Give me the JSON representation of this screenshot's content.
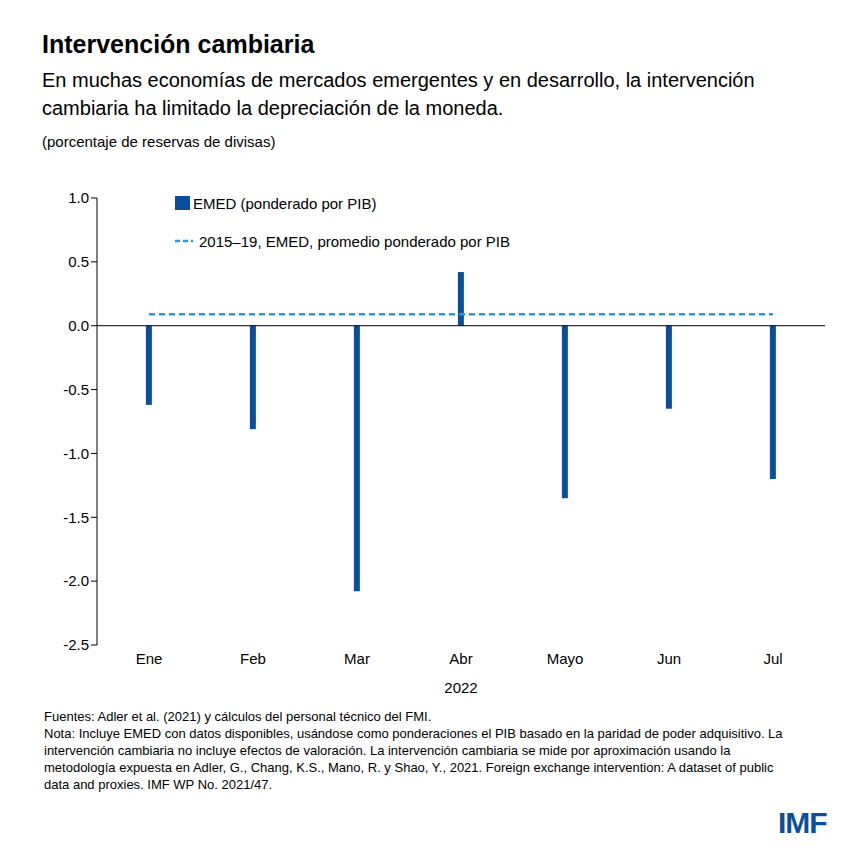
{
  "chart_data": {
    "type": "bar",
    "title": "Intervención cambiaria",
    "subtitle": "En muchas economías de mercados emergentes y en desarrollo, la intervención cambiaria ha limitado la depreciación de la moneda.",
    "ylabel": "(porcentaje de reservas de divisas)",
    "xlabel": "2022",
    "categories": [
      "Ene",
      "Feb",
      "Mar",
      "Abr",
      "Mayo",
      "Jun",
      "Jul"
    ],
    "series": [
      {
        "name": "EMED (ponderado por PIB)",
        "type": "bar",
        "color": "#0b4f9c",
        "values": [
          -0.62,
          -0.81,
          -2.08,
          0.42,
          -1.35,
          -0.65,
          -1.2
        ]
      },
      {
        "name": "2015–19, EMED, promedio ponderado por PIB",
        "type": "line",
        "line_style": "dashed",
        "color": "#1e9de0",
        "values": [
          0.09,
          0.09,
          0.09,
          0.09,
          0.09,
          0.09,
          0.09
        ]
      }
    ],
    "ylim": [
      -2.5,
      1.0
    ],
    "yticks": [
      {
        "value": 1.0,
        "label": "1.0"
      },
      0.5,
      {
        "value": 0,
        "label": "0.0"
      },
      -0.5,
      {
        "value": -1.0,
        "label": "-1.0"
      },
      -1.5,
      {
        "value": -2.0,
        "label": "-2.0"
      },
      -2.5
    ],
    "grid": false,
    "legend": "top-left",
    "sources": "Fuentes: Adler et al. (2021) y cálculos del personal técnico del FMI.",
    "note": "Nota: Incluye EMED con datos disponibles, usándose como ponderaciones el PIB basado en la paridad de poder adquisitivo. La intervención cambiaria no incluye efectos de valoración. La intervención cambiaria se mide por aproximación usando la metodología expuesta en Adler, G., Chang, K.S., Mano, R. y Shao, Y., 2021. Foreign exchange intervention: A dataset of public data and proxies. IMF WP No. 2021/47.",
    "logo": "IMF"
  }
}
